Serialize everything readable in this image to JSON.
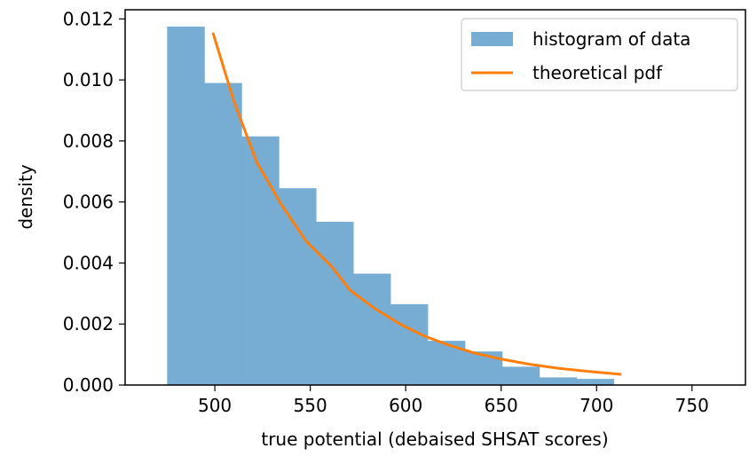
{
  "chart_data": {
    "type": "bar",
    "title": "",
    "xlabel": "true potential (debaised SHSAT scores)",
    "ylabel": "density",
    "xlim": [
      453,
      778
    ],
    "ylim": [
      0,
      0.0123
    ],
    "grid": false,
    "legend_position": "top-right",
    "x_ticks": [
      500,
      550,
      600,
      650,
      700,
      750
    ],
    "x_tick_labels": [
      "500",
      "550",
      "600",
      "650",
      "700",
      "750"
    ],
    "y_ticks": [
      0,
      0.002,
      0.004,
      0.006,
      0.008,
      0.01,
      0.012
    ],
    "y_tick_labels": [
      "0.000",
      "0.002",
      "0.004",
      "0.006",
      "0.008",
      "0.010",
      "0.012"
    ],
    "histogram": {
      "name": "histogram of data",
      "color": "#77acd3",
      "bin_edges": [
        475,
        494.5,
        514,
        533.5,
        553,
        572.5,
        592,
        611.5,
        631,
        650.5,
        670,
        689.5,
        709
      ],
      "densities": [
        0.01175,
        0.0099,
        0.00815,
        0.00645,
        0.00535,
        0.00365,
        0.00265,
        0.00145,
        0.0011,
        0.0006,
        0.00025,
        0.0002
      ]
    },
    "line": {
      "name": "theoretical pdf",
      "color": "#ff7f0e",
      "x": [
        499,
        510,
        522,
        535,
        548,
        561,
        571,
        584,
        597,
        610,
        623,
        636,
        650,
        665,
        680,
        695,
        713
      ],
      "y": [
        0.01155,
        0.0093,
        0.0073,
        0.0059,
        0.0047,
        0.0039,
        0.0031,
        0.0025,
        0.002,
        0.0016,
        0.0013,
        0.00105,
        0.00085,
        0.00068,
        0.00055,
        0.00045,
        0.00035
      ]
    }
  }
}
